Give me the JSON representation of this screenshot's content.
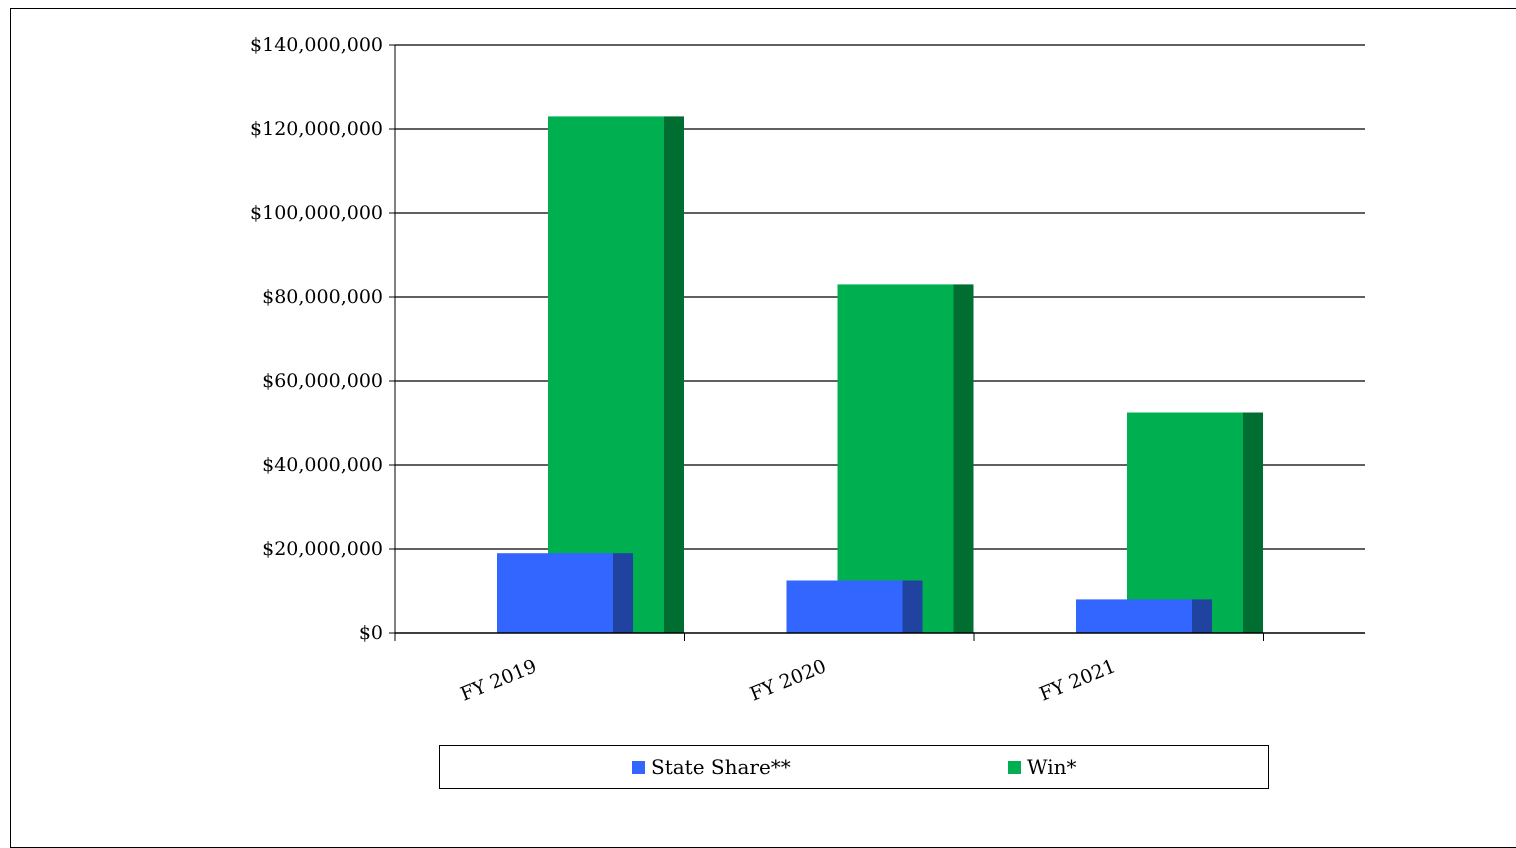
{
  "chart_data": {
    "type": "bar",
    "categories": [
      "FY 2019",
      "FY 2020",
      "FY 2021"
    ],
    "series": [
      {
        "name": "State Share**",
        "values": [
          19000000,
          12500000,
          8000000
        ],
        "color": "#3366ff",
        "side_color": "#2143a0"
      },
      {
        "name": "Win*",
        "values": [
          123000000,
          83000000,
          52500000
        ],
        "color": "#00b050",
        "side_color": "#006e30"
      }
    ],
    "ylim": [
      0,
      140000000
    ],
    "yticks": [
      0,
      20000000,
      40000000,
      60000000,
      80000000,
      100000000,
      120000000,
      140000000
    ],
    "ytick_labels": [
      "$0",
      "$20,000,000",
      "$40,000,000",
      "$60,000,000",
      "$80,000,000",
      "$100,000,000",
      "$120,000,000",
      "$140,000,000"
    ],
    "grid": true,
    "legend_position": "bottom"
  }
}
